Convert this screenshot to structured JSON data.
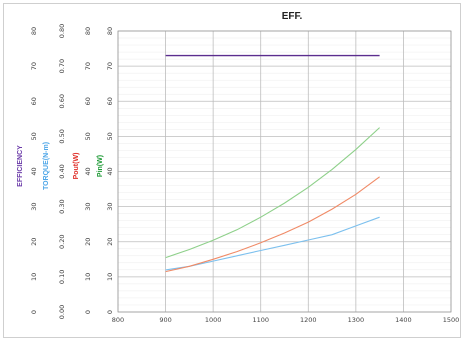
{
  "chart_data": {
    "type": "line",
    "title": "EFF.",
    "x": [
      900,
      950,
      1000,
      1050,
      1100,
      1150,
      1200,
      1250,
      1300,
      1350
    ],
    "xlim": [
      800,
      1500
    ],
    "xticks": [
      "800",
      "900",
      "1000",
      "1100",
      "1200",
      "1300",
      "1400",
      "1500"
    ],
    "axes": [
      {
        "id": "eff",
        "label": "EFFICIENCY",
        "color": "#6a3aa8",
        "ylim": [
          0,
          80
        ],
        "ticks": [
          "0",
          "10",
          "20",
          "30",
          "40",
          "50",
          "60",
          "70",
          "80"
        ]
      },
      {
        "id": "torque",
        "label": "TORQUE(N-m)",
        "color": "#4da6e8",
        "ylim": [
          0,
          0.8
        ],
        "ticks": [
          "0.00",
          "0.10",
          "0.20",
          "0.30",
          "0.40",
          "0.50",
          "0.60",
          "0.70",
          "0.80"
        ]
      },
      {
        "id": "pout",
        "label": "Pout(W)",
        "color": "#e0302a",
        "ylim": [
          0,
          80
        ],
        "ticks": [
          "0",
          "10",
          "20",
          "30",
          "40",
          "50",
          "60",
          "70",
          "80"
        ]
      },
      {
        "id": "pin",
        "label": "Pin(W)",
        "color": "#1e9a36",
        "ylim": [
          0,
          80
        ],
        "ticks": [
          "0",
          "10",
          "20",
          "30",
          "40",
          "50",
          "60",
          "70",
          "80"
        ]
      }
    ],
    "primary_ticks": [
      "0",
      "10",
      "20",
      "30",
      "40",
      "50",
      "60",
      "70",
      "80"
    ],
    "series": [
      {
        "axis": "eff",
        "color": "#5b2d8e",
        "values": [
          73,
          73,
          73,
          73,
          73,
          73,
          73,
          73,
          73,
          73
        ]
      },
      {
        "axis": "torque",
        "color": "#7cc0ee",
        "values": [
          0.12,
          0.13,
          0.145,
          0.16,
          0.175,
          0.19,
          0.205,
          0.22,
          0.245,
          0.27
        ]
      },
      {
        "axis": "pout",
        "color": "#f08a66",
        "values": [
          11.5,
          13,
          15,
          17.2,
          19.7,
          22.5,
          25.6,
          29.3,
          33.5,
          38.5
        ]
      },
      {
        "axis": "pin",
        "color": "#8ed08a",
        "values": [
          15.5,
          17.8,
          20.4,
          23.4,
          27,
          31,
          35.5,
          40.6,
          46.3,
          52.5
        ]
      }
    ],
    "grid": true,
    "legend": "none"
  }
}
